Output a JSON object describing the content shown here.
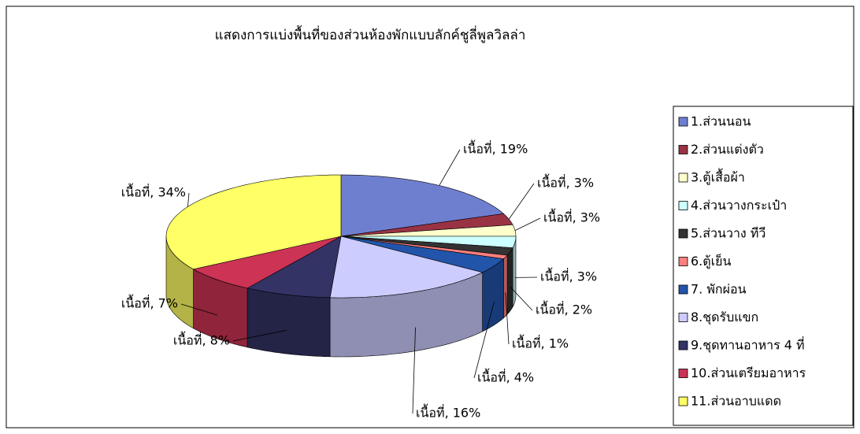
{
  "chart_data": {
    "type": "pie",
    "title": "แสดงการแบ่งพื้นที่ของส่วนห้องพักแบบลักค์ชูลี่พูลวิลล่า",
    "categories": [
      "1.ส่วนนอน",
      "2.ส่วนแต่งตัว",
      "3.ตู้เสื้อผ้า",
      "4.ส่วนวางกระเป๋า",
      "5.ส่วนวาง ทีวี",
      "6.ตู้เย็น",
      "7. พักผ่อน",
      "8.ชุดรับแขก",
      "9.ชุดทานอาหาร 4 ที่",
      "10.ส่วนเตรียมอาหาร",
      "11.ส่วนอาบแดด"
    ],
    "values": [
      19,
      3,
      3,
      3,
      2,
      1,
      4,
      16,
      8,
      7,
      34
    ],
    "value_labels": [
      "เนื้อที่, 19%",
      "เนื้อที่, 3%",
      "เนื้อที่, 3%",
      "เนื้อที่, 3%",
      "เนื้อที่, 2%",
      "เนื้อที่, 1%",
      "เนื้อที่, 4%",
      "เนื้อที่, 16%",
      "เนื้อที่, 8%",
      "เนื้อที่, 7%",
      "เนื้อที่, 34%"
    ],
    "colors": [
      "#6f7fd0",
      "#993344",
      "#ffffcc",
      "#ccffff",
      "#333333",
      "#ff8080",
      "#2255aa",
      "#ccccff",
      "#333366",
      "#cc3355",
      "#ffff66"
    ],
    "legend": "right"
  }
}
